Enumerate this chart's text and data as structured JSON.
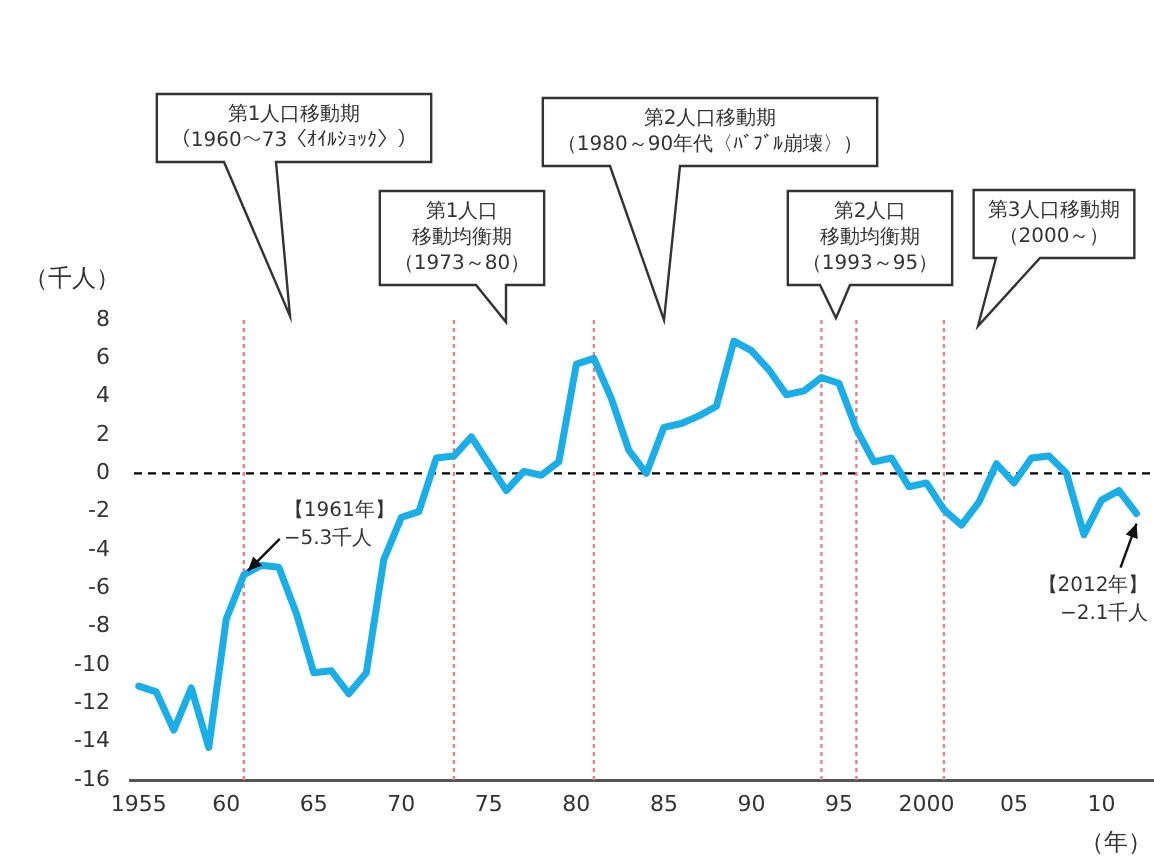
{
  "chart_data": {
    "type": "line",
    "xlabel": "（年）",
    "ylabel": "（千人）",
    "x": [
      1955,
      1956,
      1957,
      1958,
      1959,
      1960,
      1961,
      1962,
      1963,
      1964,
      1965,
      1966,
      1967,
      1968,
      1969,
      1970,
      1971,
      1972,
      1973,
      1974,
      1975,
      1976,
      1977,
      1978,
      1979,
      1980,
      1981,
      1982,
      1983,
      1984,
      1985,
      1986,
      1987,
      1988,
      1989,
      1990,
      1991,
      1992,
      1993,
      1994,
      1995,
      1996,
      1997,
      1998,
      1999,
      2000,
      2001,
      2002,
      2003,
      2004,
      2005,
      2006,
      2007,
      2008,
      2009,
      2010,
      2011,
      2012
    ],
    "series": [
      {
        "color": "#1aaee8",
        "values": [
          -11.1,
          -11.4,
          -13.4,
          -11.2,
          -14.3,
          -7.6,
          -5.3,
          -4.8,
          -4.9,
          -7.3,
          -10.4,
          -10.3,
          -11.5,
          -10.4,
          -4.5,
          -2.3,
          -2.0,
          0.8,
          0.9,
          1.9,
          0.5,
          -0.9,
          0.1,
          -0.1,
          0.6,
          5.7,
          6.0,
          3.9,
          1.2,
          0.0,
          2.4,
          2.6,
          3.0,
          3.5,
          6.9,
          6.4,
          5.4,
          4.1,
          4.3,
          5.0,
          4.7,
          2.3,
          0.6,
          0.8,
          -0.7,
          -0.5,
          -1.9,
          -2.7,
          -1.5,
          0.5,
          -0.5,
          0.8,
          0.9,
          0.0,
          -3.2,
          -1.4,
          -0.9,
          -2.1
        ]
      }
    ],
    "xlim": [
      1954.5,
      2013
    ],
    "xticks": [
      1955,
      {
        "value": 1960,
        "label": "60"
      },
      {
        "value": 1965,
        "label": "65"
      },
      {
        "value": 1970,
        "label": "70"
      },
      {
        "value": 1975,
        "label": "75"
      },
      {
        "value": 1980,
        "label": "80"
      },
      {
        "value": 1985,
        "label": "85"
      },
      {
        "value": 1990,
        "label": "90"
      },
      {
        "value": 1995,
        "label": "95"
      },
      2000,
      {
        "value": 2005,
        "label": "05"
      },
      {
        "value": 2010,
        "label": "10"
      }
    ],
    "ylim": [
      -16,
      8
    ],
    "yticks": [
      -16,
      -14,
      -12,
      -10,
      -8,
      -6,
      -4,
      -2,
      0,
      2,
      4,
      6,
      8
    ],
    "grid": false,
    "legend": false,
    "line_style": "solid",
    "ref_lines": [
      {
        "axis": "y",
        "value": 0,
        "color": "#000000",
        "line_style": "dashed"
      },
      {
        "axis": "x",
        "value": 1961,
        "color": "#f08080",
        "line_style": "dotted"
      },
      {
        "axis": "x",
        "value": 1973,
        "color": "#f08080",
        "line_style": "dotted"
      },
      {
        "axis": "x",
        "value": 1981,
        "color": "#f08080",
        "line_style": "dotted"
      },
      {
        "axis": "x",
        "value": 1994,
        "color": "#f08080",
        "line_style": "dotted"
      },
      {
        "axis": "x",
        "value": 1996,
        "color": "#f08080",
        "line_style": "dotted"
      },
      {
        "axis": "x",
        "value": 2001,
        "color": "#f08080",
        "line_style": "dotted"
      }
    ],
    "annotations": [
      "第1人口移動期（1960～73〈ｵｲﾙｼｮｯｸ〉）",
      "第1人口移動均衡期（1973～80）",
      "第2人口移動期（1980～90年代〈ﾊﾞﾌﾞﾙ崩壊〉）",
      "第2人口移動均衡期（1993～95）",
      "第3人口移動期（2000～）",
      {
        "text": "【1961年】\n−5.3千人",
        "x": 1961,
        "y": -5.3
      },
      {
        "text": "【2012年】\n−2.1千人",
        "x": 2012,
        "y": -2.1
      }
    ]
  }
}
